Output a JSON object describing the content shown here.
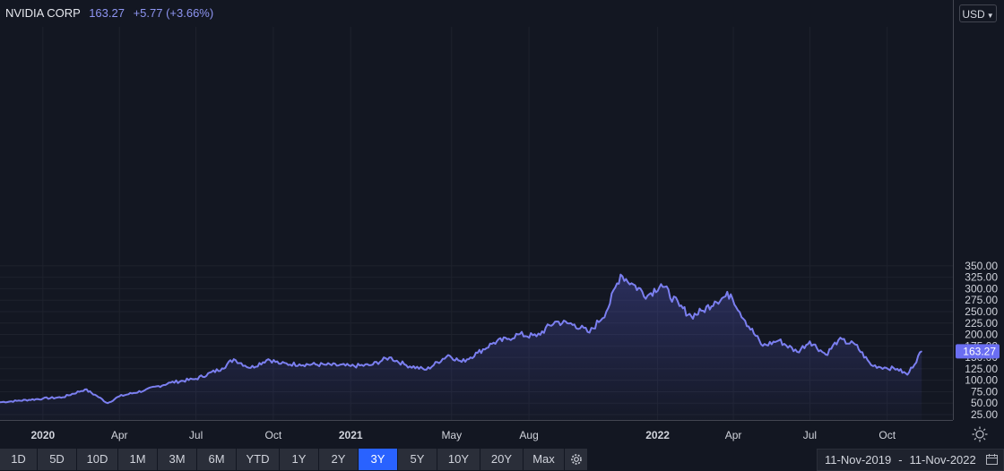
{
  "header": {
    "symbol": "NVIDIA CORP",
    "price": "163.27",
    "change": "+5.77 (+3.66%)"
  },
  "currency": {
    "label": "USD"
  },
  "timeframes": [
    {
      "label": "1D",
      "active": false
    },
    {
      "label": "5D",
      "active": false
    },
    {
      "label": "10D",
      "active": false
    },
    {
      "label": "1M",
      "active": false
    },
    {
      "label": "3M",
      "active": false
    },
    {
      "label": "6M",
      "active": false
    },
    {
      "label": "YTD",
      "active": false
    },
    {
      "label": "1Y",
      "active": false
    },
    {
      "label": "2Y",
      "active": false
    },
    {
      "label": "3Y",
      "active": true
    },
    {
      "label": "5Y",
      "active": false
    },
    {
      "label": "10Y",
      "active": false
    },
    {
      "label": "20Y",
      "active": false
    },
    {
      "label": "Max",
      "active": false
    }
  ],
  "date_range": {
    "start": "11-Nov-2019",
    "separator": "-",
    "end": "11-Nov-2022"
  },
  "colors": {
    "line": "#7b7ff0",
    "background": "#131722",
    "last_price_badge": "#6a6ef2",
    "active_button": "#2962ff"
  },
  "icons": {
    "settings": "gear-icon",
    "axis_settings": "sun-gear-icon",
    "calendar": "calendar-icon",
    "currency_menu": "chevron-down-icon"
  },
  "chart_data": {
    "type": "area",
    "ylim": [
      25,
      350
    ],
    "y_ticks": [
      "25.00",
      "50.00",
      "75.00",
      "100.00",
      "125.00",
      "150.00",
      "175.00",
      "200.00",
      "225.00",
      "250.00",
      "275.00",
      "300.00",
      "325.00",
      "350.00"
    ],
    "x_ticks": [
      {
        "label": "2020",
        "x": "2020-01-01",
        "bold": true
      },
      {
        "label": "Apr",
        "x": "2020-04-01",
        "bold": false
      },
      {
        "label": "Jul",
        "x": "2020-07-01",
        "bold": false
      },
      {
        "label": "Oct",
        "x": "2020-10-01",
        "bold": false
      },
      {
        "label": "2021",
        "x": "2021-01-01",
        "bold": true
      },
      {
        "label": "May",
        "x": "2021-05-01",
        "bold": false
      },
      {
        "label": "Aug",
        "x": "2021-08-01",
        "bold": false
      },
      {
        "label": "2022",
        "x": "2022-01-01",
        "bold": true
      },
      {
        "label": "Apr",
        "x": "2022-04-01",
        "bold": false
      },
      {
        "label": "Jul",
        "x": "2022-07-01",
        "bold": false
      },
      {
        "label": "Oct",
        "x": "2022-10-01",
        "bold": false
      }
    ],
    "last_price": "163.27",
    "x": [
      "2019-11-11",
      "2019-12-01",
      "2020-01-01",
      "2020-01-25",
      "2020-02-20",
      "2020-03-05",
      "2020-03-18",
      "2020-04-01",
      "2020-05-01",
      "2020-06-01",
      "2020-07-01",
      "2020-08-01",
      "2020-08-15",
      "2020-09-04",
      "2020-09-25",
      "2020-10-10",
      "2020-11-01",
      "2020-12-01",
      "2021-01-01",
      "2021-01-25",
      "2021-02-16",
      "2021-03-08",
      "2021-04-01",
      "2021-04-27",
      "2021-05-13",
      "2021-06-01",
      "2021-06-20",
      "2021-07-06",
      "2021-07-19",
      "2021-08-10",
      "2021-09-01",
      "2021-09-24",
      "2021-10-12",
      "2021-11-01",
      "2021-11-18",
      "2021-12-01",
      "2021-12-20",
      "2022-01-05",
      "2022-01-27",
      "2022-02-10",
      "2022-02-24",
      "2022-03-10",
      "2022-03-29",
      "2022-04-15",
      "2022-05-06",
      "2022-05-25",
      "2022-06-16",
      "2022-07-01",
      "2022-07-20",
      "2022-08-04",
      "2022-08-24",
      "2022-09-12",
      "2022-09-30",
      "2022-10-13",
      "2022-10-25",
      "2022-11-11"
    ],
    "values": [
      52,
      55,
      60,
      63,
      80,
      66,
      50,
      65,
      78,
      95,
      103,
      126,
      146,
      127,
      146,
      136,
      135,
      134,
      131,
      133,
      150,
      133,
      123,
      155,
      140,
      160,
      182,
      190,
      200,
      196,
      228,
      222,
      204,
      250,
      331,
      312,
      285,
      310,
      262,
      240,
      252,
      272,
      288,
      230,
      175,
      187,
      162,
      185,
      156,
      188,
      178,
      133,
      127,
      125,
      112,
      163.27
    ]
  }
}
